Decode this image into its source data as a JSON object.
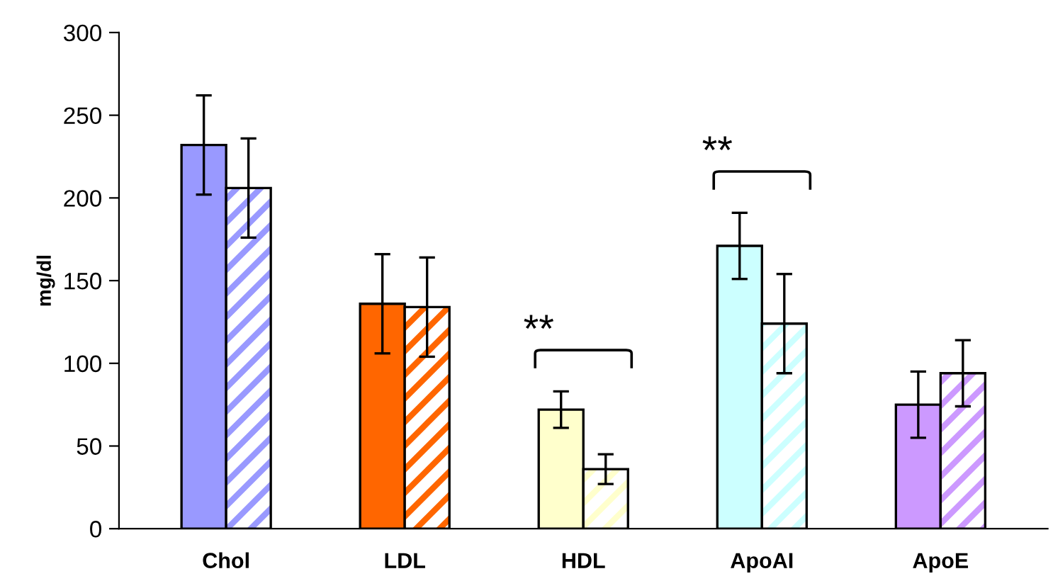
{
  "chart_data": {
    "type": "bar",
    "ylabel": "mg/dl",
    "categories": [
      "Chol",
      "LDL",
      "HDL",
      "ApoAI",
      "ApoE"
    ],
    "series": [
      {
        "colors": [
          "#9999ff",
          "#ff6600",
          "#ffffcc",
          "#ccffff",
          "#cc99ff"
        ],
        "values": [
          232,
          136,
          72,
          171,
          75
        ],
        "errors": [
          30,
          30,
          11,
          20,
          20
        ]
      },
      {
        "colors": [
          "#9999ff",
          "#ff6600",
          "#ffffcc",
          "#ccffff",
          "#cc99ff"
        ],
        "values": [
          206,
          134,
          36,
          124,
          94
        ],
        "errors": [
          30,
          30,
          9,
          30,
          20
        ]
      }
    ],
    "ylim": [
      0,
      300
    ],
    "yticks": [
      0,
      50,
      100,
      150,
      200,
      250,
      300
    ],
    "grid": false,
    "legend": false,
    "annotations": [
      "**",
      "**"
    ]
  }
}
